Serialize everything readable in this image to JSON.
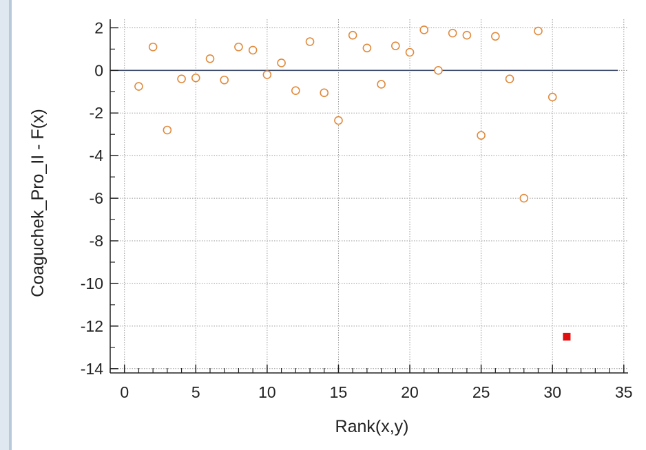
{
  "chart_data": {
    "type": "scatter",
    "xlabel": "Rank(x,y)",
    "ylabel": "Coaguchek_Pro_II - F(x)",
    "xlim": [
      -1,
      35.3
    ],
    "ylim": [
      -14.2,
      2.4
    ],
    "xticks": [
      0,
      5,
      10,
      15,
      20,
      25,
      30,
      35
    ],
    "yticks": [
      2,
      0,
      -2,
      -4,
      -6,
      -8,
      -10,
      -12,
      -14
    ],
    "xtick_labels": [
      "0",
      "5",
      "10",
      "15",
      "20",
      "25",
      "30",
      "35"
    ],
    "ytick_labels": [
      "2",
      "0",
      "-2",
      "-4",
      "-6",
      "-8",
      "-10",
      "-12",
      "-14"
    ],
    "reference_line_y": 0,
    "grid": true,
    "series": [
      {
        "marker": "open-circle",
        "color": "#e08a3c",
        "points": [
          [
            1,
            -0.75
          ],
          [
            2,
            1.1
          ],
          [
            3,
            -2.8
          ],
          [
            4,
            -0.4
          ],
          [
            5,
            -0.35
          ],
          [
            6,
            0.55
          ],
          [
            7,
            -0.45
          ],
          [
            8,
            1.1
          ],
          [
            9,
            0.95
          ],
          [
            10,
            -0.2
          ],
          [
            11,
            0.35
          ],
          [
            12,
            -0.95
          ],
          [
            13,
            1.35
          ],
          [
            14,
            -1.05
          ],
          [
            15,
            -2.35
          ],
          [
            16,
            1.65
          ],
          [
            17,
            1.05
          ],
          [
            18,
            -0.65
          ],
          [
            19,
            1.15
          ],
          [
            20,
            0.85
          ],
          [
            21,
            1.9
          ],
          [
            22,
            0.0
          ],
          [
            23,
            1.75
          ],
          [
            24,
            1.65
          ],
          [
            25,
            -3.05
          ],
          [
            26,
            1.6
          ],
          [
            27,
            -0.4
          ],
          [
            28,
            -6.0
          ],
          [
            29,
            1.85
          ],
          [
            30,
            -1.25
          ]
        ]
      },
      {
        "marker": "filled-square",
        "color": "#e01010",
        "points": [
          [
            31,
            -12.5
          ]
        ]
      }
    ]
  }
}
